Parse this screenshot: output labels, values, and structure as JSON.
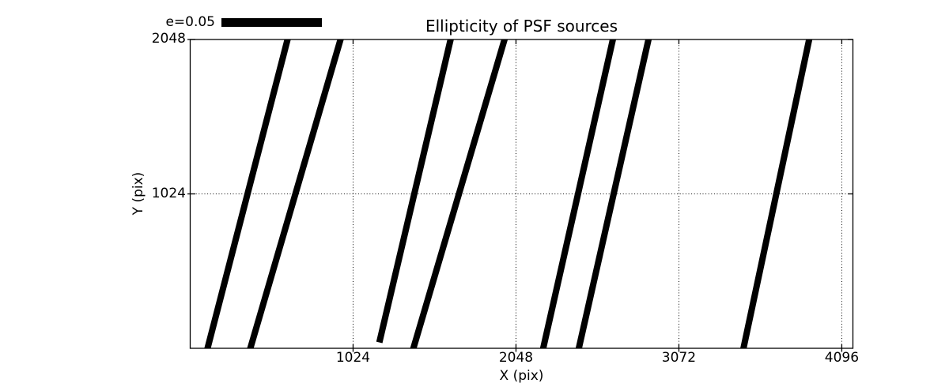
{
  "figure": {
    "background": "#ffffff"
  },
  "chart_data": {
    "type": "line",
    "subtype": "ellipticity-whisker-map",
    "title": "Ellipticity of PSF sources",
    "xlabel": "X (pix)",
    "ylabel": "Y (pix)",
    "xlim": [
      0,
      4166
    ],
    "ylim": [
      0,
      2048
    ],
    "xticks": [
      {
        "value": 1024,
        "label": "1024"
      },
      {
        "value": 2048,
        "label": "2048"
      },
      {
        "value": 3072,
        "label": "3072"
      },
      {
        "value": 4096,
        "label": "4096"
      }
    ],
    "yticks": [
      {
        "value": 1024,
        "label": "1024"
      },
      {
        "value": 2048,
        "label": "2048"
      }
    ],
    "grid": {
      "x": [
        1024,
        2048,
        3072,
        4096
      ],
      "y": [
        1024
      ],
      "style": "dotted",
      "color": "#000000"
    },
    "legend": {
      "label": "e=0.05",
      "swatch_color": "#000000"
    },
    "line_color": "#000000",
    "axis_color": "#000000",
    "segments": [
      {
        "x1": 109,
        "y1": 0,
        "x2": 612,
        "y2": 2048
      },
      {
        "x1": 378,
        "y1": 0,
        "x2": 945,
        "y2": 2048
      },
      {
        "x1": 1189,
        "y1": 39,
        "x2": 1637,
        "y2": 2048
      },
      {
        "x1": 1403,
        "y1": 0,
        "x2": 1976,
        "y2": 2048
      },
      {
        "x1": 2219,
        "y1": 0,
        "x2": 2657,
        "y2": 2048
      },
      {
        "x1": 2443,
        "y1": 0,
        "x2": 2881,
        "y2": 2048
      },
      {
        "x1": 3478,
        "y1": 0,
        "x2": 3891,
        "y2": 2048
      }
    ]
  }
}
